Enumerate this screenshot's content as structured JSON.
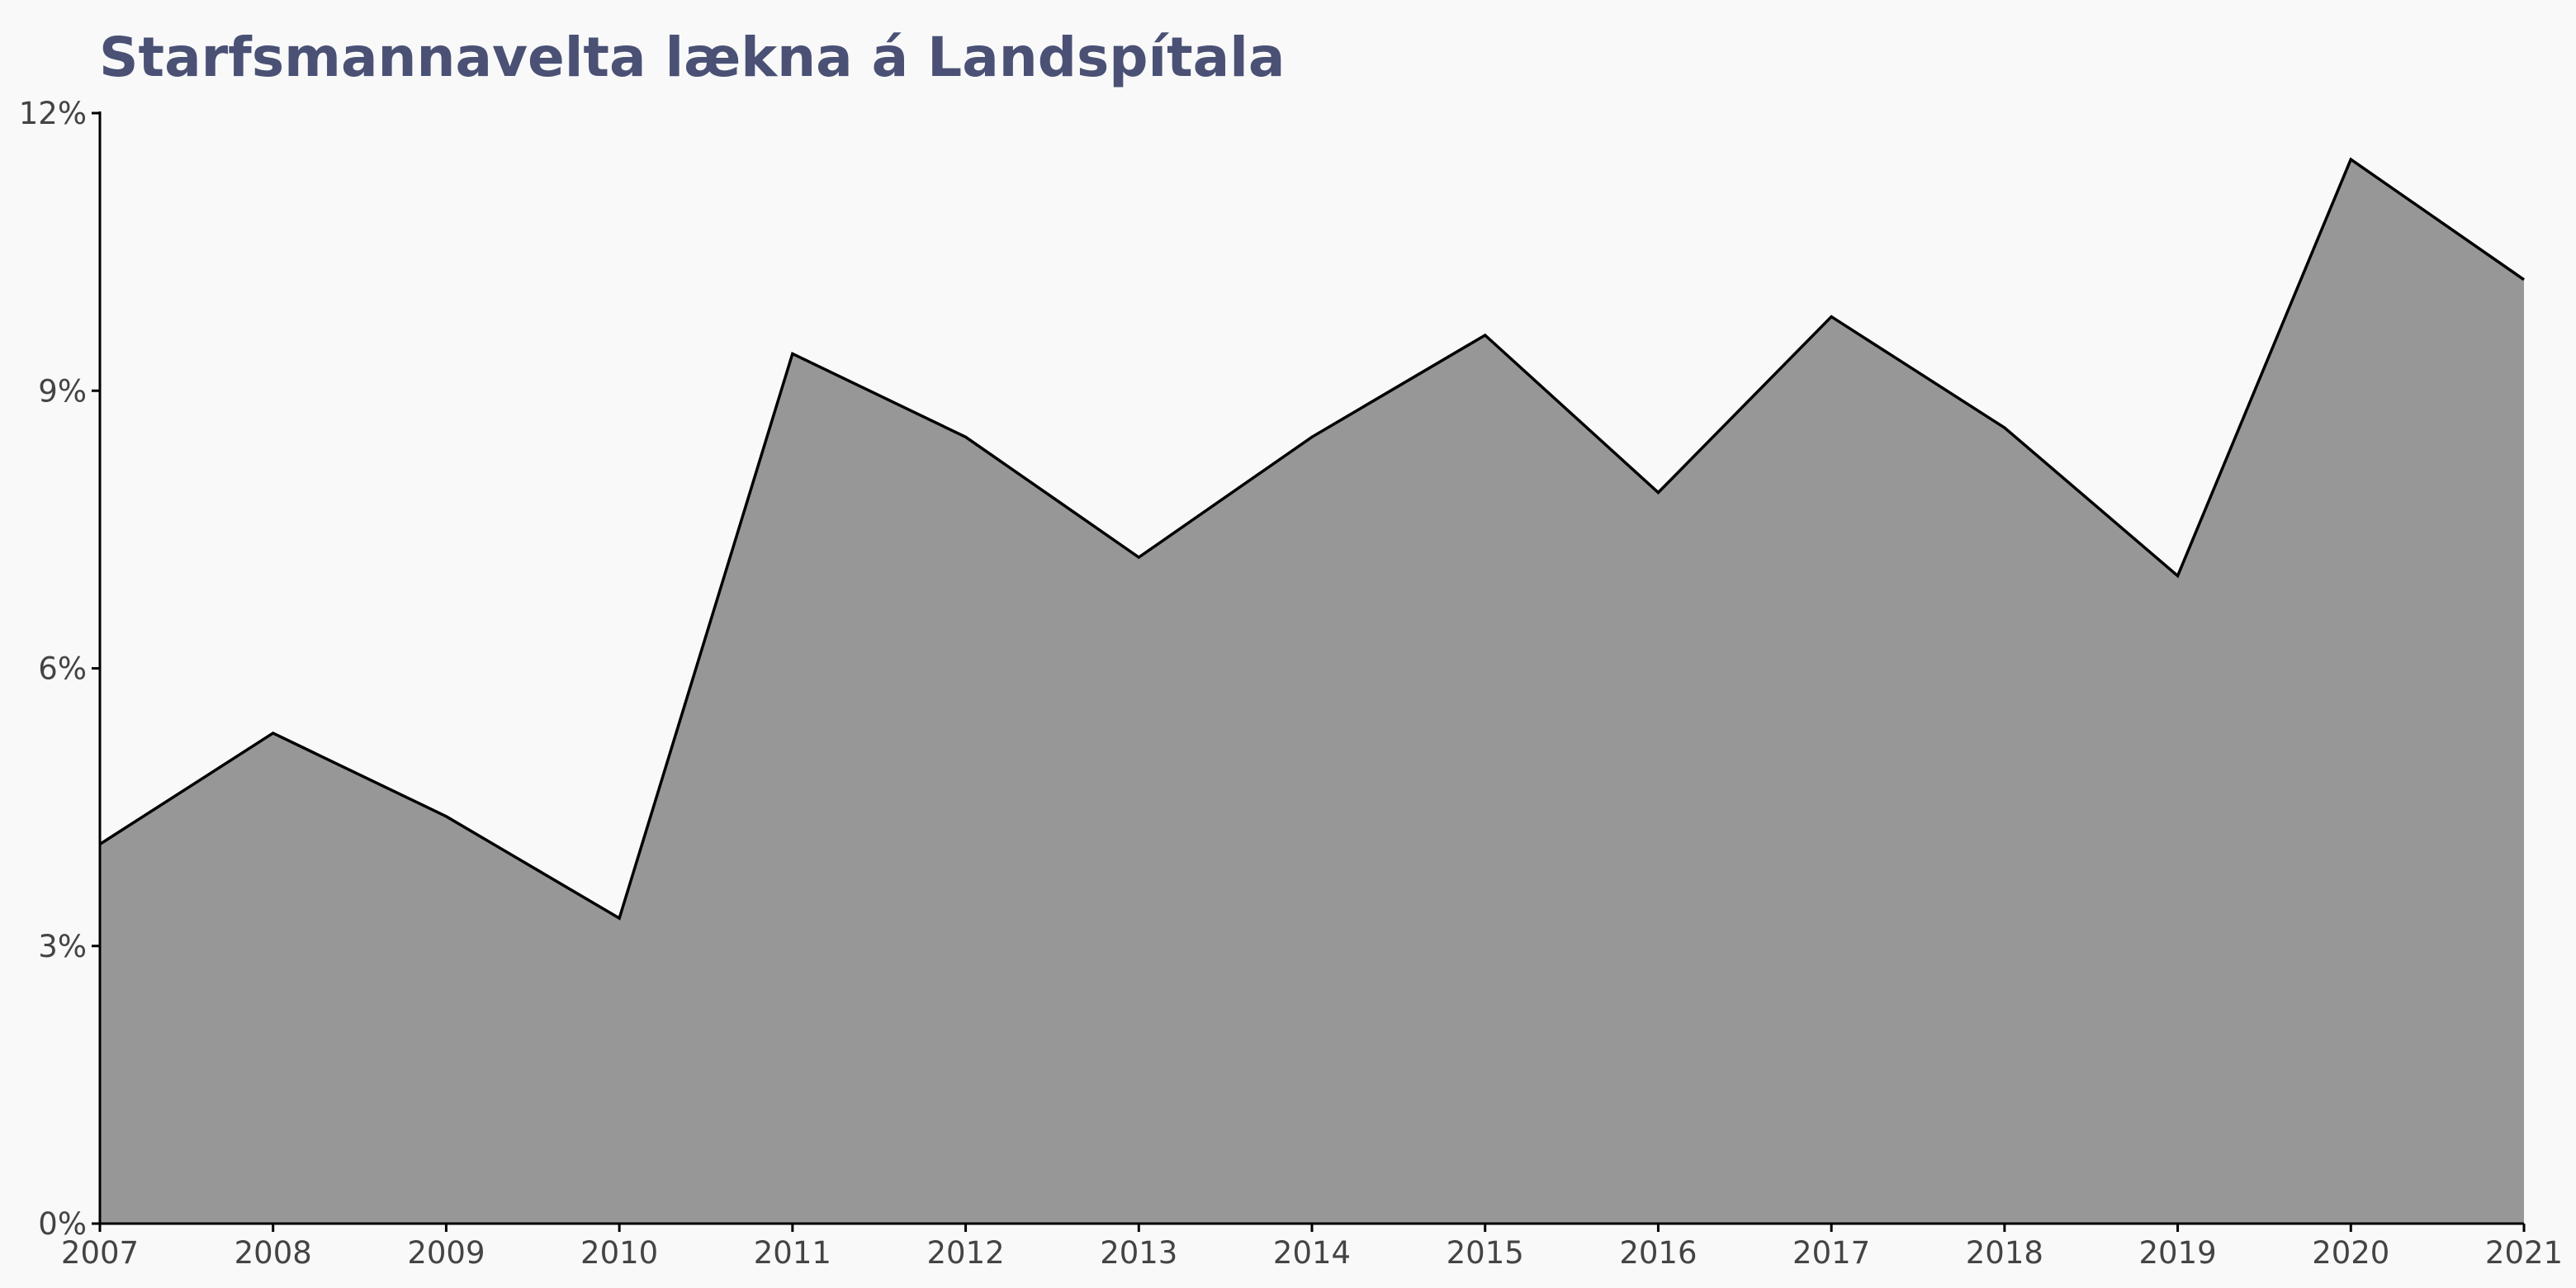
{
  "chart_data": {
    "type": "area",
    "title": "Starfsmannavelta lækna á Landspítala",
    "xlabel": "",
    "ylabel": "",
    "x": [
      2007,
      2008,
      2009,
      2010,
      2011,
      2012,
      2013,
      2014,
      2015,
      2016,
      2017,
      2018,
      2019,
      2020,
      2021
    ],
    "series": [
      {
        "values": [
          4.1,
          5.3,
          4.4,
          3.3,
          9.4,
          8.5,
          7.2,
          8.5,
          9.6,
          7.9,
          9.8,
          8.6,
          7.0,
          11.5,
          10.2
        ]
      }
    ],
    "ylim": [
      0,
      12
    ],
    "yticks": [
      0,
      3,
      6,
      9,
      12
    ],
    "ytick_labels": [
      "0%",
      "3%",
      "6%",
      "9%",
      "12%"
    ],
    "xticks": [
      "2007",
      "2008",
      "2009",
      "2010",
      "2011",
      "2012",
      "2013",
      "2014",
      "2015",
      "2016",
      "2017",
      "2018",
      "2019",
      "2020",
      "2021"
    ],
    "grid": false,
    "legend": "none",
    "colors": {
      "area_fill": "#979797",
      "line": "#000000",
      "title": "#4a5175",
      "axis": "#000000",
      "tick_text": "#444444",
      "background": "#f9f9f9"
    }
  }
}
